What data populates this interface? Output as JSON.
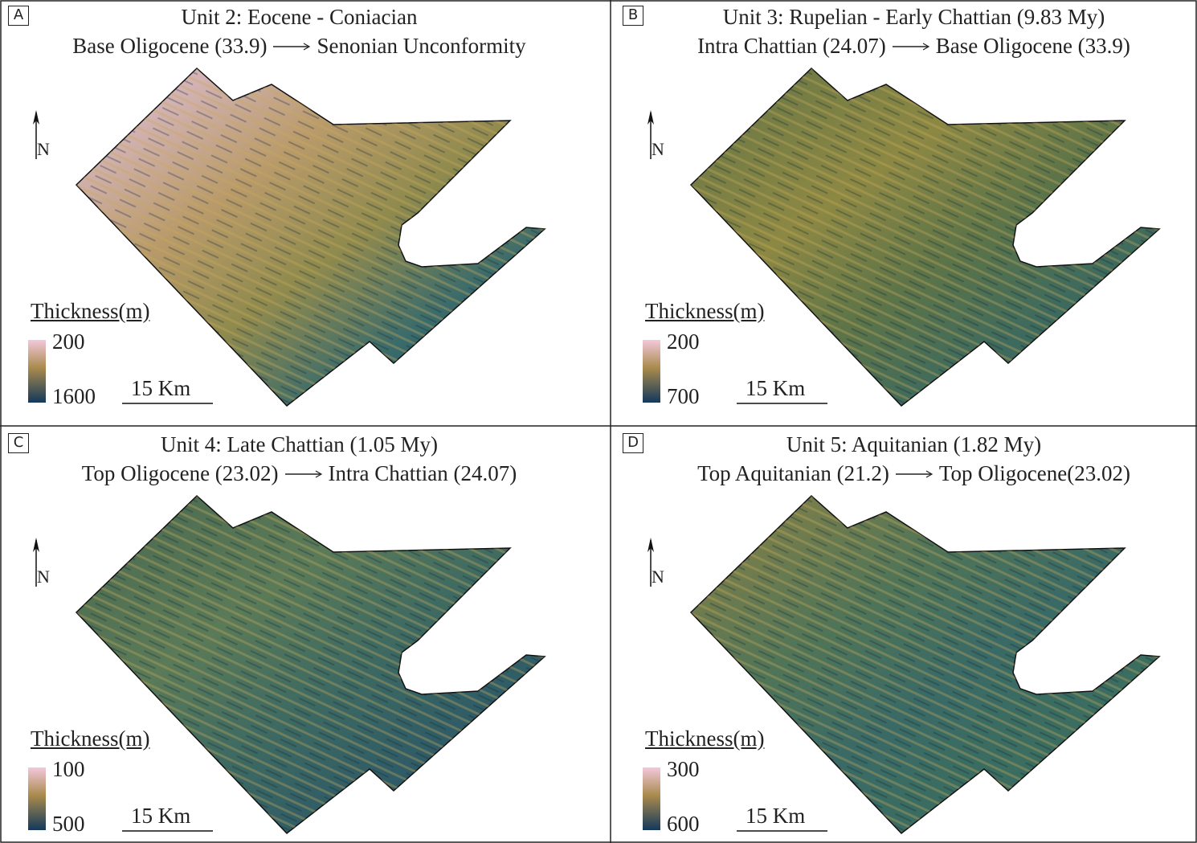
{
  "panels": [
    {
      "letter": "A",
      "title": "Unit 2: Eocene - Coniacian",
      "from": "Base Oligocene (33.9)",
      "to": "Senonian Unconformity",
      "north": "N",
      "legend_title": "Thickness(m)",
      "legend_top": "200",
      "legend_bottom": "1600",
      "scale": "15 Km"
    },
    {
      "letter": "B",
      "title": "Unit 3: Rupelian - Early Chattian (9.83 My)",
      "from": "Intra Chattian (24.07)",
      "to": "Base Oligocene (33.9)",
      "north": "N",
      "legend_title": "Thickness(m)",
      "legend_top": "200",
      "legend_bottom": "700",
      "scale": "15 Km"
    },
    {
      "letter": "C",
      "title": "Unit 4: Late Chattian (1.05 My)",
      "from": "Top Oligocene (23.02)",
      "to": "Intra Chattian (24.07)",
      "north": "N",
      "legend_title": "Thickness(m)",
      "legend_top": "100",
      "legend_bottom": "500",
      "scale": "15 Km"
    },
    {
      "letter": "D",
      "title": "Unit 5: Aquitanian (1.82 My)",
      "from": "Top Aquitanian (21.2)",
      "to": "Top Oligocene(23.02)",
      "north": "N",
      "legend_title": "Thickness(m)",
      "legend_top": "300",
      "legend_bottom": "600",
      "scale": "15 Km"
    }
  ]
}
